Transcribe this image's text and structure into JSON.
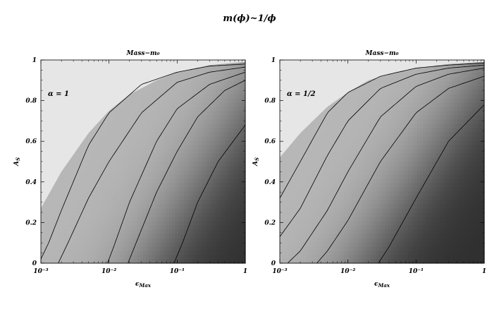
{
  "figure": {
    "title": "m(ϕ)~1/ϕ",
    "colors": {
      "light_region": "#e6e6e6",
      "dark_region": "#2e2e2e",
      "contour": "#000000",
      "frame": "#000000"
    }
  },
  "chart_data": [
    {
      "type": "heatmap",
      "title": "Mass−m₀",
      "annotation": "α = 1",
      "xlabel": "ϵMax",
      "ylabel": "AS",
      "xscale": "log",
      "xlim": [
        0.001,
        1
      ],
      "ylim": [
        0,
        1
      ],
      "x_ticks": [
        0.001,
        0.01,
        0.1,
        1
      ],
      "x_tick_labels": [
        "10⁻³",
        "10⁻²",
        "10⁻¹",
        "1"
      ],
      "y_ticks": [
        0,
        0.2,
        0.4,
        0.6,
        0.8,
        1
      ],
      "y_tick_labels": [
        "0",
        "0.2",
        "0.4",
        "0.6",
        "0.8",
        "1"
      ],
      "boundary_light": {
        "x": [
          0.001,
          0.002,
          0.005,
          0.01,
          0.02,
          0.05,
          0.1,
          0.3,
          1
        ],
        "y": [
          0.27,
          0.45,
          0.64,
          0.75,
          0.83,
          0.9,
          0.94,
          0.975,
          0.99
        ]
      },
      "contours": [
        {
          "x": [
            0.001,
            0.0013,
            0.002,
            0.005,
            0.01,
            0.03,
            0.1,
            0.3,
            1
          ],
          "y": [
            0.02,
            0.1,
            0.26,
            0.58,
            0.74,
            0.88,
            0.94,
            0.97,
            0.98
          ]
        },
        {
          "x": [
            0.0018,
            0.0025,
            0.005,
            0.01,
            0.03,
            0.1,
            0.3,
            1
          ],
          "y": [
            0.0,
            0.1,
            0.32,
            0.5,
            0.74,
            0.89,
            0.94,
            0.965
          ]
        },
        {
          "x": [
            0.0095,
            0.012,
            0.02,
            0.05,
            0.1,
            0.3,
            1
          ],
          "y": [
            0.0,
            0.09,
            0.3,
            0.6,
            0.76,
            0.88,
            0.94
          ]
        },
        {
          "x": [
            0.019,
            0.025,
            0.05,
            0.1,
            0.2,
            0.5,
            1
          ],
          "y": [
            0.0,
            0.1,
            0.35,
            0.55,
            0.72,
            0.85,
            0.9
          ]
        },
        {
          "x": [
            0.09,
            0.12,
            0.2,
            0.4,
            1
          ],
          "y": [
            0.0,
            0.1,
            0.3,
            0.5,
            0.68
          ]
        }
      ],
      "shading": {
        "x_dark_at_y0": 0.04,
        "x_dark_at_y1": 3.0,
        "light_level": 0.72,
        "dark_level": 0.18
      }
    },
    {
      "type": "heatmap",
      "title": "Mass−m₀",
      "annotation": "α = 1/2",
      "xlabel": "ϵMax",
      "ylabel": "AS",
      "xscale": "log",
      "xlim": [
        0.001,
        1
      ],
      "ylim": [
        0,
        1
      ],
      "x_ticks": [
        0.001,
        0.01,
        0.1,
        1
      ],
      "x_tick_labels": [
        "10⁻³",
        "10⁻²",
        "10⁻¹",
        "1"
      ],
      "y_ticks": [
        0,
        0.2,
        0.4,
        0.6,
        0.8,
        1
      ],
      "y_tick_labels": [
        "0",
        "0.2",
        "0.4",
        "0.6",
        "0.8",
        "1"
      ],
      "boundary_light": {
        "x": [
          0.001,
          0.002,
          0.005,
          0.01,
          0.02,
          0.05,
          0.1,
          0.3,
          1
        ],
        "y": [
          0.52,
          0.64,
          0.77,
          0.84,
          0.9,
          0.94,
          0.96,
          0.98,
          0.99
        ]
      },
      "contours": [
        {
          "x": [
            0.001,
            0.002,
            0.005,
            0.01,
            0.03,
            0.1,
            0.3,
            1
          ],
          "y": [
            0.32,
            0.5,
            0.74,
            0.84,
            0.92,
            0.96,
            0.975,
            0.985
          ]
        },
        {
          "x": [
            0.001,
            0.002,
            0.005,
            0.01,
            0.03,
            0.1,
            0.3,
            1
          ],
          "y": [
            0.13,
            0.27,
            0.53,
            0.7,
            0.86,
            0.93,
            0.96,
            0.975
          ]
        },
        {
          "x": [
            0.0013,
            0.002,
            0.005,
            0.01,
            0.03,
            0.1,
            0.3,
            1
          ],
          "y": [
            0.0,
            0.06,
            0.26,
            0.45,
            0.72,
            0.87,
            0.93,
            0.96
          ]
        },
        {
          "x": [
            0.0035,
            0.005,
            0.01,
            0.03,
            0.1,
            0.3,
            1
          ],
          "y": [
            0.0,
            0.06,
            0.21,
            0.5,
            0.74,
            0.86,
            0.92
          ]
        },
        {
          "x": [
            0.028,
            0.04,
            0.1,
            0.3,
            1
          ],
          "y": [
            0.0,
            0.08,
            0.32,
            0.6,
            0.78
          ]
        }
      ],
      "shading": {
        "x_dark_at_y0": 0.015,
        "x_dark_at_y1": 1.5,
        "light_level": 0.72,
        "dark_level": 0.18
      }
    }
  ]
}
